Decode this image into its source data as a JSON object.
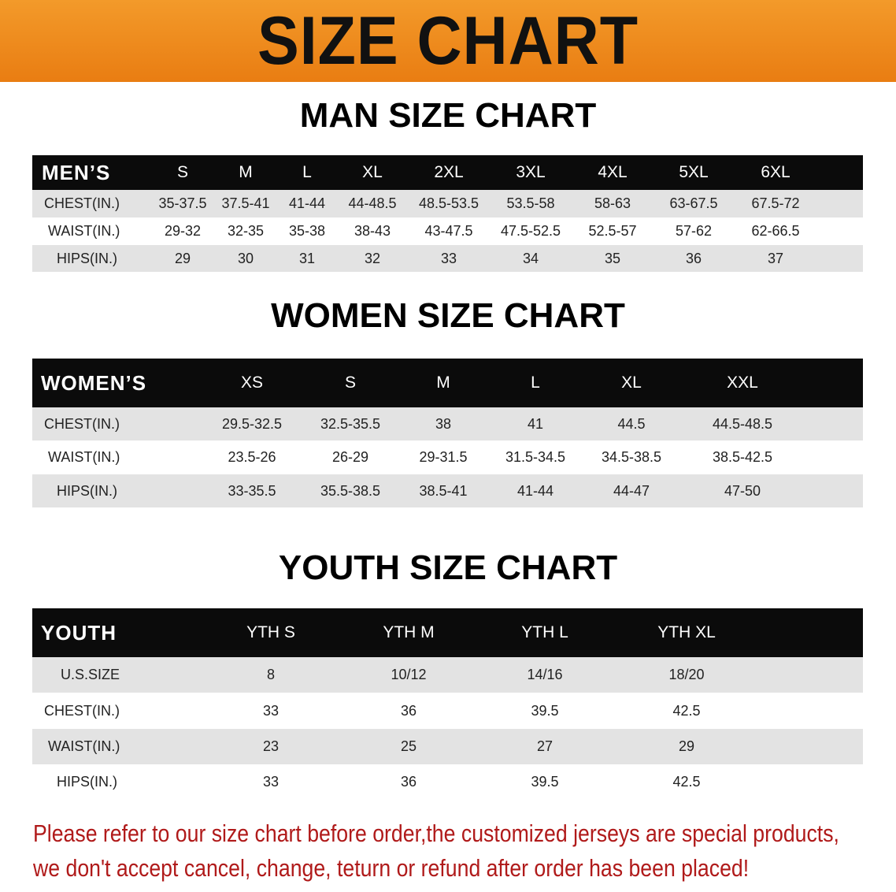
{
  "banner": {
    "title": "SIZE CHART",
    "color": "#ee8a1c"
  },
  "men": {
    "title": "MAN SIZE CHART",
    "header": [
      "MEN’S",
      "S",
      "M",
      "L",
      "XL",
      "2XL",
      "3XL",
      "4XL",
      "5XL",
      "6XL"
    ],
    "rows": [
      [
        "CHEST(IN.)",
        "35-37.5",
        "37.5-41",
        "41-44",
        "44-48.5",
        "48.5-53.5",
        "53.5-58",
        "58-63",
        "63-67.5",
        "67.5-72"
      ],
      [
        "WAIST(IN.)",
        "29-32",
        "32-35",
        "35-38",
        "38-43",
        "43-47.5",
        "47.5-52.5",
        "52.5-57",
        "57-62",
        "62-66.5"
      ],
      [
        "HIPS(IN.)",
        "29",
        "30",
        "31",
        "32",
        "33",
        "34",
        "35",
        "36",
        "37"
      ]
    ]
  },
  "women": {
    "title": "WOMEN SIZE CHART",
    "header": [
      "WOMEN’S",
      "XS",
      "S",
      "M",
      "L",
      "XL",
      "XXL"
    ],
    "rows": [
      [
        "CHEST(IN.)",
        "29.5-32.5",
        "32.5-35.5",
        "38",
        "41",
        "44.5",
        "44.5-48.5"
      ],
      [
        "WAIST(IN.)",
        "23.5-26",
        "26-29",
        "29-31.5",
        "31.5-34.5",
        "34.5-38.5",
        "38.5-42.5"
      ],
      [
        "HIPS(IN.)",
        "33-35.5",
        "35.5-38.5",
        "38.5-41",
        "41-44",
        "44-47",
        "47-50"
      ]
    ]
  },
  "youth": {
    "title": "YOUTH SIZE CHART",
    "header": [
      "YOUTH",
      "YTH S",
      "YTH M",
      "YTH L",
      "YTH XL"
    ],
    "rows": [
      [
        "U.S.SIZE",
        "8",
        "10/12",
        "14/16",
        "18/20"
      ],
      [
        "CHEST(IN.)",
        "33",
        "36",
        "39.5",
        "42.5"
      ],
      [
        "WAIST(IN.)",
        "23",
        "25",
        "27",
        "29"
      ],
      [
        "HIPS(IN.)",
        "33",
        "36",
        "39.5",
        "42.5"
      ]
    ]
  },
  "notice": {
    "line1": "Please refer to our size chart before order,the customized jerseys are special products,",
    "line2": "we don't accept cancel, change, teturn or refund after order has been placed!",
    "color": "#b01a1a"
  }
}
